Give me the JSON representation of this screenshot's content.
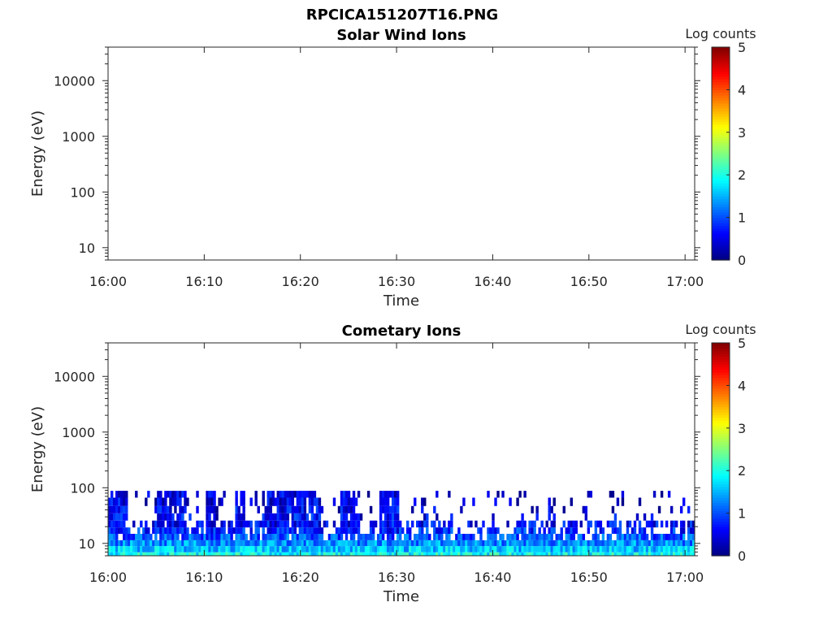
{
  "figure_title": "RPCICA151207T16.PNG",
  "chart_data": [
    {
      "type": "heatmap",
      "title": "Solar Wind Ions",
      "xlabel": "Time",
      "ylabel": "Energy (eV)",
      "x_range": [
        "16:00",
        "17:01"
      ],
      "x_ticks": [
        "16:00",
        "16:10",
        "16:20",
        "16:30",
        "16:40",
        "16:50",
        "17:00"
      ],
      "y_scale": "log",
      "y_range": [
        6,
        40000
      ],
      "y_ticks": [
        "10",
        "100",
        "1000",
        "10000"
      ],
      "colorbar": {
        "label": "Log counts",
        "range": [
          0,
          5
        ],
        "ticks": [
          "0",
          "1",
          "2",
          "3",
          "4",
          "5"
        ],
        "colormap": "jet"
      },
      "data_description_note": "",
      "counts": []
    },
    {
      "type": "heatmap",
      "title": "Cometary Ions",
      "xlabel": "Time",
      "ylabel": "Energy (eV)",
      "x_range": [
        "16:00",
        "17:01"
      ],
      "x_ticks": [
        "16:00",
        "16:10",
        "16:20",
        "16:30",
        "16:40",
        "16:50",
        "17:00"
      ],
      "y_scale": "log",
      "y_range": [
        6,
        40000
      ],
      "y_ticks": [
        "10",
        "100",
        "1000",
        "10000"
      ],
      "colorbar": {
        "label": "Log counts",
        "range": [
          0,
          5
        ],
        "ticks": [
          "0",
          "1",
          "2",
          "3",
          "4",
          "5"
        ],
        "colormap": "jet"
      },
      "counts_profile": {
        "energy_eV": [
          6,
          8,
          10,
          13,
          17,
          22,
          30,
          40,
          55,
          80
        ],
        "typical_log_counts": [
          1.9,
          1.6,
          1.3,
          1.0,
          0.8,
          0.6,
          0.5,
          0.4,
          0.3,
          0.3
        ]
      },
      "enhanced_intervals": [
        {
          "start": "16:00",
          "end": "16:02",
          "max_energy_eV": 80
        },
        {
          "start": "16:05",
          "end": "16:08",
          "max_energy_eV": 80
        },
        {
          "start": "16:10",
          "end": "16:11",
          "max_energy_eV": 80
        },
        {
          "start": "16:13",
          "end": "16:14",
          "max_energy_eV": 80
        },
        {
          "start": "16:16",
          "end": "16:22",
          "max_energy_eV": 80
        },
        {
          "start": "16:24",
          "end": "16:26",
          "max_energy_eV": 80
        },
        {
          "start": "16:28",
          "end": "16:30",
          "max_energy_eV": 80
        }
      ]
    }
  ]
}
